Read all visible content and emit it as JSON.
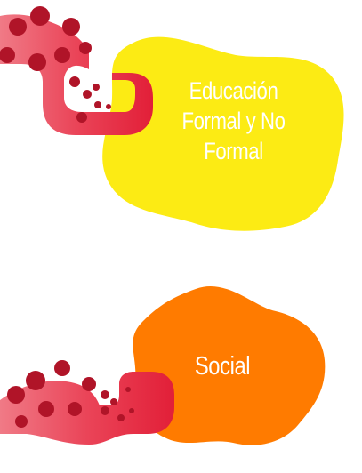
{
  "cards": [
    {
      "label": "Educación\nFormal y No\nFormal",
      "lines": [
        "Educación",
        "Formal y No",
        "Formal"
      ],
      "blob_color": "#FCEB14",
      "text_color": "#FFFFFF"
    },
    {
      "label": "Social",
      "lines": [
        "Social"
      ],
      "blob_color": "#FF7B00",
      "text_color": "#FFFFFF"
    }
  ],
  "tentacle": {
    "body_color": "#E8243C",
    "body_light_color": "#F07A86",
    "sucker_color": "#B01428"
  }
}
